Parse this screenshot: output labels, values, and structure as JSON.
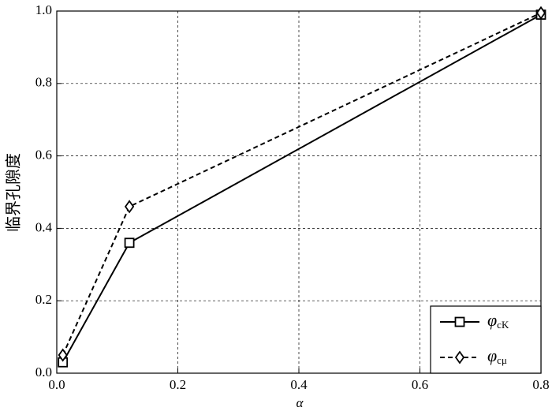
{
  "chart_data": {
    "type": "line",
    "x_label": "α",
    "y_label": "临界孔隙度",
    "x": [
      0.01,
      0.12,
      0.8
    ],
    "series": [
      {
        "name": "φcK",
        "color": "#000000",
        "dash": false,
        "marker": "square",
        "values": [
          0.03,
          0.36,
          0.99
        ]
      },
      {
        "name": "φcμ",
        "color": "#000000",
        "dash": true,
        "marker": "diamond",
        "values": [
          0.05,
          0.46,
          0.995
        ]
      }
    ],
    "xlim": [
      0,
      0.8
    ],
    "xticks": [
      {
        "value": 0,
        "label": "0.0"
      },
      0.2,
      0.4,
      0.6,
      0.8
    ],
    "ylim": [
      0,
      1
    ],
    "yticks": [
      {
        "value": 0,
        "label": "0.0"
      },
      0.2,
      0.4,
      0.6,
      0.8,
      {
        "value": 1,
        "label": "1.0"
      }
    ],
    "grid": true,
    "legend": "lower right"
  }
}
